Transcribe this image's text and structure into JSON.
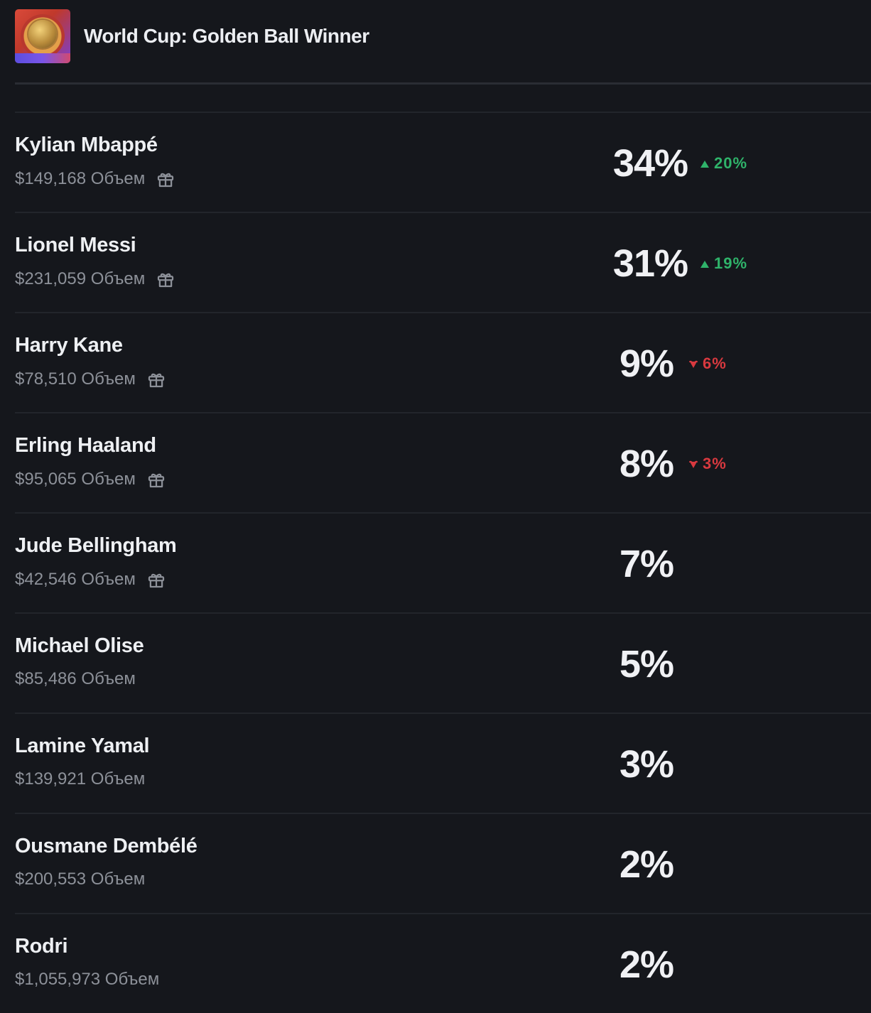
{
  "market": {
    "title": "World Cup: Golden Ball Winner",
    "icon": "golden-ball-icon"
  },
  "volume_suffix": "Объем",
  "colors": {
    "background": "#15171c",
    "up": "#2fb36a",
    "down": "#d9393f",
    "muted": "#8d9199"
  },
  "outcomes": [
    {
      "name": "Kylian Mbappé",
      "volume": "$149,168 Объем",
      "has_gift": true,
      "percent": "34%",
      "change": "20%",
      "direction": "up"
    },
    {
      "name": "Lionel Messi",
      "volume": "$231,059 Объем",
      "has_gift": true,
      "percent": "31%",
      "change": "19%",
      "direction": "up"
    },
    {
      "name": "Harry Kane",
      "volume": "$78,510 Объем",
      "has_gift": true,
      "percent": "9%",
      "change": "6%",
      "direction": "down"
    },
    {
      "name": "Erling Haaland",
      "volume": "$95,065 Объем",
      "has_gift": true,
      "percent": "8%",
      "change": "3%",
      "direction": "down"
    },
    {
      "name": "Jude Bellingham",
      "volume": "$42,546 Объем",
      "has_gift": true,
      "percent": "7%",
      "change": "",
      "direction": ""
    },
    {
      "name": "Michael Olise",
      "volume": "$85,486 Объем",
      "has_gift": false,
      "percent": "5%",
      "change": "",
      "direction": ""
    },
    {
      "name": "Lamine Yamal",
      "volume": "$139,921 Объем",
      "has_gift": false,
      "percent": "3%",
      "change": "",
      "direction": ""
    },
    {
      "name": "Ousmane Dembélé",
      "volume": "$200,553 Объем",
      "has_gift": false,
      "percent": "2%",
      "change": "",
      "direction": ""
    },
    {
      "name": "Rodri",
      "volume": "$1,055,973 Объем",
      "has_gift": false,
      "percent": "2%",
      "change": "",
      "direction": ""
    }
  ]
}
